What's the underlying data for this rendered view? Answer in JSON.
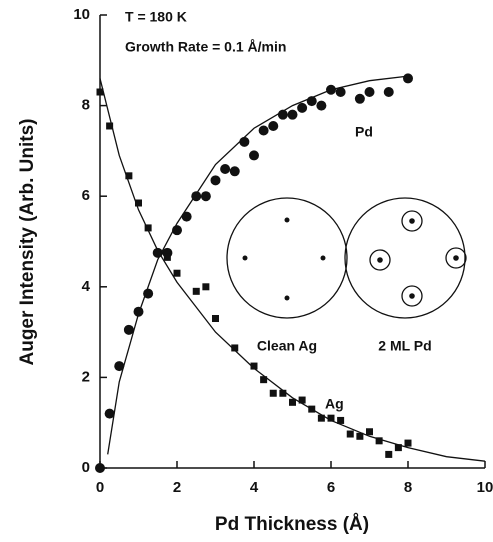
{
  "chart_data": {
    "type": "scatter",
    "annotations": [
      "T = 180 K",
      "Growth Rate = 0.1 Å/min",
      "Clean Ag",
      "2 ML Pd"
    ],
    "x_label": "Pd Thickness (Å)",
    "y_label": "Auger Intensity (Arb. Units)",
    "xlim": [
      0,
      10
    ],
    "ylim": [
      0,
      10
    ],
    "xticks": [
      0,
      2,
      4,
      6,
      8,
      10
    ],
    "yticks": [
      0,
      2,
      4,
      6,
      8,
      10
    ],
    "series": [
      {
        "name": "Pd",
        "marker": "circle",
        "color": "#111111",
        "x": [
          0,
          0.25,
          0.5,
          0.75,
          1.0,
          1.25,
          1.5,
          1.75,
          2.0,
          2.25,
          2.5,
          2.75,
          3.0,
          3.25,
          3.5,
          3.75,
          4.0,
          4.25,
          4.5,
          4.75,
          5.0,
          5.25,
          5.5,
          5.75,
          6.0,
          6.25,
          6.75,
          7.0,
          7.5,
          8.0
        ],
        "values": [
          0,
          1.2,
          2.25,
          3.05,
          3.45,
          3.85,
          4.75,
          4.75,
          5.25,
          5.55,
          6.0,
          6.0,
          6.35,
          6.6,
          6.55,
          7.2,
          6.9,
          7.45,
          7.55,
          7.8,
          7.8,
          7.95,
          8.1,
          8.0,
          8.35,
          8.3,
          8.15,
          8.3,
          8.3,
          8.6
        ],
        "fit_x": [
          0.2,
          0.5,
          1,
          1.5,
          2,
          3,
          4,
          5,
          6,
          7,
          8
        ],
        "fit_values": [
          0.3,
          1.9,
          3.4,
          4.6,
          5.4,
          6.7,
          7.5,
          8.0,
          8.35,
          8.55,
          8.65
        ]
      },
      {
        "name": "Ag",
        "marker": "square",
        "color": "#111111",
        "x": [
          0,
          0.25,
          0.75,
          1.0,
          1.25,
          1.5,
          1.75,
          2.0,
          2.5,
          2.75,
          3.0,
          3.5,
          4.0,
          4.25,
          4.5,
          4.75,
          5.0,
          5.25,
          5.5,
          5.75,
          6.0,
          6.25,
          6.5,
          6.75,
          7.0,
          7.25,
          7.5,
          7.75,
          8.0
        ],
        "values": [
          8.3,
          7.55,
          6.45,
          5.85,
          5.3,
          4.75,
          4.65,
          4.3,
          3.9,
          4.0,
          3.3,
          2.65,
          2.25,
          1.95,
          1.65,
          1.65,
          1.45,
          1.5,
          1.3,
          1.1,
          1.1,
          1.05,
          0.75,
          0.7,
          0.8,
          0.6,
          0.3,
          0.45,
          0.55
        ],
        "fit_x": [
          0,
          0.5,
          1,
          1.5,
          2,
          3,
          4,
          5,
          6,
          7,
          8,
          9,
          10
        ],
        "fit_values": [
          8.6,
          6.9,
          5.7,
          4.8,
          4.1,
          3.0,
          2.2,
          1.55,
          1.05,
          0.7,
          0.45,
          0.25,
          0.15
        ]
      }
    ]
  }
}
